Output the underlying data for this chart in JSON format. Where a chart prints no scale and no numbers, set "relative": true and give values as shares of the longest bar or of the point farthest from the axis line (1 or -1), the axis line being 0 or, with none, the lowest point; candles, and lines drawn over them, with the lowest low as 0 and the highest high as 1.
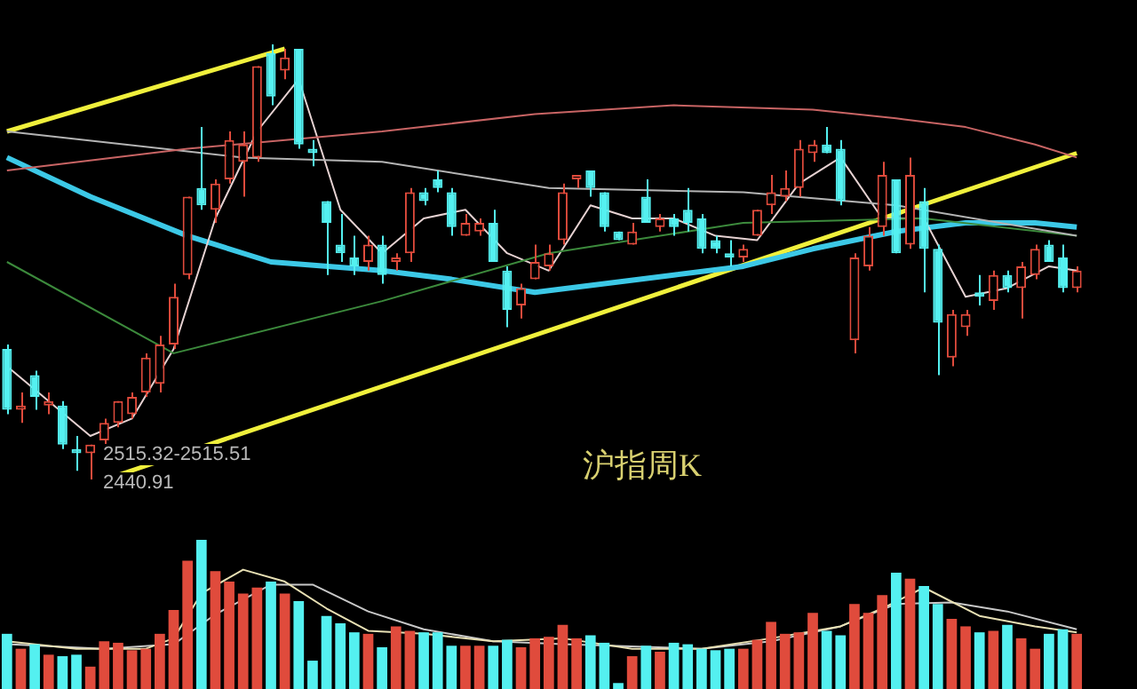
{
  "chart_data": [
    {
      "type": "candlestick",
      "relative": true,
      "legend": false,
      "categories": [
        null,
        null,
        null,
        null,
        null,
        null,
        null,
        null,
        null,
        null,
        null,
        null,
        null,
        null,
        null,
        null,
        null,
        null,
        null,
        null,
        null,
        null,
        null,
        null,
        null,
        null,
        null,
        null,
        null,
        null,
        null,
        null,
        null,
        null,
        null,
        null,
        null,
        null,
        null,
        null,
        null,
        null,
        null,
        null,
        null,
        null,
        null,
        null,
        null,
        null,
        null,
        null,
        null,
        null,
        null,
        null,
        null,
        null,
        null,
        null,
        null,
        null,
        null,
        null,
        null,
        null,
        null,
        null,
        null,
        null,
        null,
        null,
        null,
        null,
        null,
        null,
        null,
        null
      ],
      "ohlc": [
        [
          0.3,
          0.31,
          0.15,
          0.16
        ],
        [
          0.16,
          0.2,
          0.13,
          0.17
        ],
        [
          0.24,
          0.25,
          0.16,
          0.19
        ],
        [
          0.17,
          0.2,
          0.15,
          0.18
        ],
        [
          0.17,
          0.18,
          0.07,
          0.08
        ],
        [
          0.07,
          0.1,
          0.02,
          0.06
        ],
        [
          0.06,
          0.08,
          0,
          0.08
        ],
        [
          0.09,
          0.14,
          0.08,
          0.13
        ],
        [
          0.13,
          0.18,
          0.12,
          0.18
        ],
        [
          0.15,
          0.2,
          0.14,
          0.19
        ],
        [
          0.2,
          0.29,
          0.19,
          0.28
        ],
        [
          0.22,
          0.33,
          0.2,
          0.31
        ],
        [
          0.31,
          0.45,
          0.3,
          0.42
        ],
        [
          0.47,
          0.65,
          0.46,
          0.65
        ],
        [
          0.67,
          0.81,
          0.62,
          0.63
        ],
        [
          0.62,
          0.69,
          0.59,
          0.68
        ],
        [
          0.69,
          0.8,
          0.68,
          0.78
        ],
        [
          0.73,
          0.8,
          0.65,
          0.77
        ],
        [
          0.74,
          0.95,
          0.73,
          0.95
        ],
        [
          0.98,
          1,
          0.86,
          0.88
        ],
        [
          0.94,
          0.99,
          0.92,
          0.97
        ],
        [
          0.99,
          0.99,
          0.76,
          0.77
        ],
        [
          0.76,
          0.78,
          0.72,
          0.75
        ],
        [
          0.64,
          0.64,
          0.47,
          0.59
        ],
        [
          0.54,
          0.61,
          0.5,
          0.52
        ],
        [
          0.51,
          0.56,
          0.47,
          0.49
        ],
        [
          0.5,
          0.56,
          0.48,
          0.54
        ],
        [
          0.54,
          0.56,
          0.45,
          0.47
        ],
        [
          0.5,
          0.52,
          0.48,
          0.51
        ],
        [
          0.52,
          0.67,
          0.5,
          0.66
        ],
        [
          0.66,
          0.67,
          0.63,
          0.64
        ],
        [
          0.69,
          0.71,
          0.66,
          0.67
        ],
        [
          0.66,
          0.67,
          0.56,
          0.58
        ],
        [
          0.56,
          0.61,
          0.56,
          0.59
        ],
        [
          0.57,
          0.6,
          0.56,
          0.59
        ],
        [
          0.59,
          0.62,
          0.5,
          0.5
        ],
        [
          0.48,
          0.49,
          0.35,
          0.39
        ],
        [
          0.4,
          0.45,
          0.37,
          0.44
        ],
        [
          0.46,
          0.54,
          0.46,
          0.5
        ],
        [
          0.49,
          0.54,
          0.48,
          0.52
        ],
        [
          0.55,
          0.68,
          0.54,
          0.66
        ],
        [
          0.69,
          0.7,
          0.67,
          0.7
        ],
        [
          0.71,
          0.71,
          0.65,
          0.67
        ],
        [
          0.66,
          0.66,
          0.57,
          0.58
        ],
        [
          0.57,
          0.57,
          0.55,
          0.55
        ],
        [
          0.54,
          0.59,
          0.54,
          0.57
        ],
        [
          0.65,
          0.69,
          0.59,
          0.59
        ],
        [
          0.58,
          0.61,
          0.57,
          0.6
        ],
        [
          0.6,
          0.61,
          0.56,
          0.58
        ],
        [
          0.62,
          0.67,
          0.57,
          0.59
        ],
        [
          0.6,
          0.61,
          0.52,
          0.53
        ],
        [
          0.55,
          0.56,
          0.52,
          0.53
        ],
        [
          0.52,
          0.55,
          0.49,
          0.51
        ],
        [
          0.51,
          0.54,
          0.5,
          0.53
        ],
        [
          0.56,
          0.62,
          0.56,
          0.62
        ],
        [
          0.63,
          0.7,
          0.61,
          0.66
        ],
        [
          0.65,
          0.71,
          0.64,
          0.67
        ],
        [
          0.67,
          0.78,
          0.65,
          0.76
        ],
        [
          0.75,
          0.78,
          0.73,
          0.77
        ],
        [
          0.77,
          0.81,
          0.75,
          0.75
        ],
        [
          0.76,
          0.78,
          0.63,
          0.64
        ],
        [
          0.32,
          0.52,
          0.29,
          0.51
        ],
        [
          0.49,
          0.58,
          0.48,
          0.56
        ],
        [
          0.58,
          0.73,
          0.56,
          0.7
        ],
        [
          0.69,
          0.69,
          0.52,
          0.52
        ],
        [
          0.54,
          0.74,
          0.53,
          0.7
        ],
        [
          0.64,
          0.67,
          0.43,
          0.53
        ],
        [
          0.53,
          0.54,
          0.24,
          0.36
        ],
        [
          0.28,
          0.39,
          0.26,
          0.38
        ],
        [
          0.35,
          0.39,
          0.33,
          0.38
        ],
        [
          0.43,
          0.47,
          0.4,
          0.42
        ],
        [
          0.41,
          0.48,
          0.39,
          0.47
        ],
        [
          0.47,
          0.48,
          0.43,
          0.44
        ],
        [
          0.44,
          0.5,
          0.37,
          0.49
        ],
        [
          0.47,
          0.54,
          0.46,
          0.53
        ],
        [
          0.54,
          0.55,
          0.5,
          0.5
        ],
        [
          0.51,
          0.54,
          0.43,
          0.44
        ],
        [
          0.44,
          0.49,
          0.43,
          0.48
        ]
      ],
      "colors": [
        "#54f0f0",
        "#e04b3c",
        "#54f0f0",
        "#e04b3c",
        "#54f0f0",
        "#54f0f0",
        "#e04b3c",
        "#e04b3c",
        "#e04b3c",
        "#e04b3c",
        "#e04b3c",
        "#e04b3c",
        "#e04b3c",
        "#e04b3c",
        "#54f0f0",
        "#e04b3c",
        "#e04b3c",
        "#e04b3c",
        "#e04b3c",
        "#54f0f0",
        "#e04b3c",
        "#54f0f0",
        "#54f0f0",
        "#54f0f0",
        "#54f0f0",
        "#54f0f0",
        "#e04b3c",
        "#54f0f0",
        "#e04b3c",
        "#e04b3c",
        "#54f0f0",
        "#54f0f0",
        "#54f0f0",
        "#e04b3c",
        "#e04b3c",
        "#54f0f0",
        "#54f0f0",
        "#e04b3c",
        "#e04b3c",
        "#e04b3c",
        "#e04b3c",
        "#e04b3c",
        "#54f0f0",
        "#54f0f0",
        "#54f0f0",
        "#e04b3c",
        "#54f0f0",
        "#e04b3c",
        "#54f0f0",
        "#54f0f0",
        "#54f0f0",
        "#54f0f0",
        "#54f0f0",
        "#e04b3c",
        "#e04b3c",
        "#e04b3c",
        "#e04b3c",
        "#e04b3c",
        "#e04b3c",
        "#54f0f0",
        "#54f0f0",
        "#e04b3c",
        "#e04b3c",
        "#e04b3c",
        "#54f0f0",
        "#e04b3c",
        "#54f0f0",
        "#54f0f0",
        "#e04b3c",
        "#e04b3c",
        "#54f0f0",
        "#e04b3c",
        "#54f0f0",
        "#e04b3c",
        "#e04b3c",
        "#54f0f0",
        "#54f0f0",
        "#e04b3c"
      ],
      "series": [
        {
          "type": "line",
          "color": "#c86464",
          "values": [
            0.71,
            null,
            null,
            null,
            null,
            null,
            null,
            null,
            null,
            null,
            null,
            null,
            null,
            0.76,
            null,
            null,
            null,
            null,
            null,
            null,
            null,
            null,
            null,
            null,
            null,
            null,
            null,
            0.8,
            null,
            null,
            null,
            null,
            null,
            null,
            null,
            null,
            null,
            null,
            0.84,
            null,
            null,
            null,
            null,
            null,
            null,
            null,
            null,
            null,
            0.86,
            null,
            null,
            null,
            null,
            null,
            null,
            null,
            null,
            null,
            0.85,
            null,
            null,
            null,
            null,
            null,
            0.83,
            null,
            null,
            null,
            null,
            0.81,
            null,
            null,
            null,
            null,
            0.77,
            null,
            null,
            0.74
          ]
        },
        {
          "type": "line",
          "color": "#b4b4b4",
          "values": [
            0.8,
            null,
            null,
            null,
            null,
            null,
            null,
            null,
            null,
            null,
            null,
            null,
            null,
            null,
            null,
            null,
            null,
            0.74,
            null,
            null,
            null,
            null,
            null,
            null,
            null,
            null,
            null,
            0.73,
            null,
            null,
            null,
            null,
            null,
            null,
            null,
            null,
            null,
            null,
            null,
            0.67,
            null,
            null,
            null,
            null,
            null,
            null,
            null,
            null,
            null,
            null,
            null,
            null,
            null,
            0.66,
            null,
            null,
            null,
            null,
            null,
            null,
            null,
            null,
            null,
            null,
            0.63,
            null,
            null,
            null,
            null,
            null,
            null,
            null,
            null,
            null,
            null,
            null,
            null,
            0.56
          ]
        },
        {
          "type": "line",
          "color": "#3c8a3c",
          "values": [
            0.5,
            null,
            null,
            null,
            null,
            null,
            null,
            null,
            null,
            null,
            null,
            null,
            0.29,
            null,
            null,
            null,
            null,
            null,
            null,
            null,
            null,
            null,
            null,
            null,
            null,
            null,
            null,
            0.41,
            null,
            null,
            null,
            null,
            null,
            null,
            null,
            null,
            null,
            null,
            null,
            0.52,
            null,
            null,
            null,
            null,
            null,
            null,
            null,
            null,
            null,
            null,
            null,
            null,
            null,
            0.59,
            null,
            null,
            null,
            null,
            null,
            null,
            null,
            null,
            null,
            null,
            null,
            null,
            0.6,
            null,
            null,
            null,
            null,
            null,
            null,
            null,
            null,
            null,
            null,
            0.56
          ]
        },
        {
          "type": "line",
          "color": "#e6d2d2",
          "values": [
            0.26,
            null,
            null,
            0.18,
            null,
            null,
            0.1,
            null,
            null,
            0.14,
            null,
            null,
            0.3,
            null,
            null,
            0.6,
            null,
            null,
            0.8,
            null,
            null,
            0.92,
            null,
            null,
            0.62,
            null,
            null,
            0.52,
            null,
            null,
            0.6,
            null,
            null,
            0.62,
            null,
            null,
            0.52,
            null,
            null,
            0.48,
            null,
            null,
            0.63,
            null,
            null,
            0.6,
            null,
            null,
            0.6,
            null,
            null,
            0.56,
            null,
            null,
            0.55,
            null,
            null,
            0.68,
            null,
            null,
            0.74,
            null,
            null,
            0.6,
            null,
            null,
            0.6,
            null,
            null,
            0.42,
            null,
            null,
            0.44,
            null,
            null,
            0.49,
            null,
            0.48
          ]
        },
        {
          "type": "line",
          "color": "#3cc8e6",
          "values": [
            0.74,
            null,
            null,
            null,
            null,
            null,
            0.65,
            null,
            null,
            null,
            null,
            null,
            null,
            0.56,
            null,
            null,
            null,
            null,
            null,
            0.5,
            null,
            null,
            null,
            null,
            null,
            null,
            null,
            0.48,
            null,
            null,
            null,
            null,
            0.46,
            null,
            null,
            null,
            null,
            null,
            0.43,
            null,
            null,
            null,
            null,
            0.45,
            null,
            null,
            null,
            null,
            0.47,
            null,
            null,
            null,
            null,
            0.49,
            null,
            null,
            null,
            null,
            0.53,
            null,
            null,
            null,
            null,
            null,
            0.57,
            null,
            null,
            null,
            null,
            0.59,
            null,
            null,
            null,
            null,
            0.59,
            null,
            null,
            0.58
          ]
        },
        {
          "type": "line",
          "color": "#f0f03c",
          "values": [
            0.8,
            null,
            null,
            null,
            null,
            null,
            null,
            null,
            null,
            null,
            null,
            null,
            null,
            null,
            null,
            null,
            null,
            null,
            null,
            null,
            0.99,
            null,
            null,
            null,
            null,
            null,
            null,
            null,
            null,
            null,
            null,
            null,
            null,
            null,
            null,
            null,
            null,
            null,
            null,
            null,
            null,
            null,
            null,
            null,
            null,
            null,
            null,
            null,
            null,
            null,
            null,
            null,
            null,
            null,
            null,
            null,
            null,
            null,
            null,
            null,
            null,
            null,
            null,
            null,
            null,
            null,
            null,
            null,
            null,
            null,
            null,
            null,
            null,
            null,
            null,
            null,
            null,
            null
          ]
        },
        {
          "type": "line",
          "color": "#f0f03c",
          "values": [
            null,
            null,
            null,
            null,
            null,
            null,
            null,
            null,
            0.01,
            null,
            null,
            null,
            null,
            null,
            null,
            null,
            null,
            null,
            null,
            null,
            null,
            null,
            null,
            null,
            null,
            null,
            null,
            null,
            null,
            null,
            null,
            null,
            null,
            null,
            null,
            null,
            null,
            null,
            null,
            null,
            null,
            null,
            null,
            null,
            null,
            null,
            null,
            null,
            null,
            null,
            null,
            null,
            null,
            null,
            null,
            null,
            null,
            null,
            null,
            null,
            null,
            null,
            null,
            null,
            null,
            null,
            null,
            null,
            null,
            null,
            null,
            null,
            null,
            null,
            null,
            null,
            null,
            0.75
          ]
        }
      ],
      "annotations": [
        "2515.32-2515.51",
        "2440.91",
        "沪指周K"
      ]
    },
    {
      "type": "bar",
      "relative": true,
      "legend": false,
      "categories": [
        null,
        null,
        null,
        null,
        null,
        null,
        null,
        null,
        null,
        null,
        null,
        null,
        null,
        null,
        null,
        null,
        null,
        null,
        null,
        null,
        null,
        null,
        null,
        null,
        null,
        null,
        null,
        null,
        null,
        null,
        null,
        null,
        null,
        null,
        null,
        null,
        null,
        null,
        null,
        null,
        null,
        null,
        null,
        null,
        null,
        null,
        null,
        null,
        null,
        null,
        null,
        null,
        null,
        null,
        null,
        null,
        null,
        null,
        null,
        null,
        null,
        null,
        null,
        null,
        null,
        null,
        null,
        null,
        null,
        null,
        null,
        null,
        null,
        null,
        null,
        null,
        null,
        null
      ],
      "series": [
        {
          "type": "bar",
          "values": [
            0.37,
            0.27,
            0.3,
            0.23,
            0.22,
            0.23,
            0.15,
            0.32,
            0.31,
            0.26,
            0.27,
            0.37,
            0.53,
            0.86,
            1,
            0.79,
            0.72,
            0.64,
            0.68,
            0.72,
            0.64,
            0.59,
            0.19,
            0.49,
            0.44,
            0.38,
            0.37,
            0.28,
            0.42,
            0.39,
            0.38,
            0.38,
            0.29,
            0.29,
            0.29,
            0.29,
            0.33,
            0.28,
            0.34,
            0.35,
            0.43,
            0.34,
            0.36,
            0.31,
            0.04,
            0.22,
            0.29,
            0.25,
            0.31,
            0.3,
            0.27,
            0.26,
            0.27,
            0.27,
            0.33,
            0.45,
            0.37,
            0.38,
            0.51,
            0.39,
            0.36,
            0.57,
            0.51,
            0.63,
            0.78,
            0.74,
            0.69,
            0.57,
            0.47,
            0.42,
            0.38,
            0.39,
            0.43,
            0.34,
            0.27,
            0.37,
            0.4,
            0.37
          ],
          "colors": [
            "#54f0f0",
            "#e04b3c",
            "#54f0f0",
            "#e04b3c",
            "#54f0f0",
            "#54f0f0",
            "#e04b3c",
            "#e04b3c",
            "#e04b3c",
            "#e04b3c",
            "#e04b3c",
            "#e04b3c",
            "#e04b3c",
            "#e04b3c",
            "#54f0f0",
            "#e04b3c",
            "#e04b3c",
            "#e04b3c",
            "#e04b3c",
            "#54f0f0",
            "#e04b3c",
            "#54f0f0",
            "#54f0f0",
            "#54f0f0",
            "#54f0f0",
            "#54f0f0",
            "#e04b3c",
            "#54f0f0",
            "#e04b3c",
            "#e04b3c",
            "#54f0f0",
            "#54f0f0",
            "#54f0f0",
            "#e04b3c",
            "#e04b3c",
            "#54f0f0",
            "#54f0f0",
            "#e04b3c",
            "#e04b3c",
            "#e04b3c",
            "#e04b3c",
            "#e04b3c",
            "#54f0f0",
            "#54f0f0",
            "#54f0f0",
            "#e04b3c",
            "#54f0f0",
            "#e04b3c",
            "#54f0f0",
            "#54f0f0",
            "#54f0f0",
            "#54f0f0",
            "#54f0f0",
            "#e04b3c",
            "#e04b3c",
            "#e04b3c",
            "#e04b3c",
            "#e04b3c",
            "#e04b3c",
            "#54f0f0",
            "#54f0f0",
            "#e04b3c",
            "#e04b3c",
            "#e04b3c",
            "#54f0f0",
            "#e04b3c",
            "#54f0f0",
            "#54f0f0",
            "#e04b3c",
            "#e04b3c",
            "#54f0f0",
            "#e04b3c",
            "#54f0f0",
            "#e04b3c",
            "#e04b3c",
            "#54f0f0",
            "#54f0f0",
            "#e04b3c"
          ]
        },
        {
          "type": "line",
          "color": "#e8e0b4",
          "values": [
            0.32,
            null,
            null,
            null,
            null,
            0.27,
            null,
            null,
            null,
            null,
            0.27,
            null,
            0.34,
            null,
            0.64,
            null,
            null,
            0.8,
            null,
            null,
            0.72,
            null,
            null,
            0.54,
            null,
            null,
            0.39,
            null,
            null,
            null,
            0.37,
            null,
            null,
            null,
            null,
            0.32,
            null,
            null,
            null,
            null,
            0.34,
            null,
            null,
            null,
            null,
            0.27,
            null,
            null,
            null,
            null,
            0.27,
            null,
            null,
            null,
            null,
            0.34,
            null,
            null,
            null,
            null,
            0.42,
            null,
            null,
            0.54,
            null,
            null,
            0.68,
            null,
            null,
            null,
            0.49,
            null,
            null,
            null,
            0.42,
            null,
            null,
            0.38
          ]
        },
        {
          "type": "line",
          "color": "#c8c8c8",
          "values": [
            0.3,
            null,
            null,
            null,
            null,
            null,
            null,
            0.27,
            null,
            null,
            null,
            null,
            0.3,
            null,
            null,
            0.5,
            null,
            null,
            null,
            0.7,
            null,
            null,
            0.7,
            null,
            null,
            null,
            0.52,
            null,
            null,
            null,
            0.4,
            null,
            null,
            null,
            null,
            0.32,
            null,
            null,
            null,
            null,
            0.3,
            null,
            null,
            null,
            null,
            null,
            null,
            null,
            null,
            null,
            0.27,
            null,
            null,
            null,
            null,
            0.32,
            null,
            null,
            null,
            null,
            0.42,
            null,
            null,
            null,
            0.57,
            null,
            null,
            null,
            0.58,
            null,
            null,
            null,
            0.52,
            null,
            null,
            null,
            null,
            0.4
          ]
        }
      ]
    }
  ]
}
